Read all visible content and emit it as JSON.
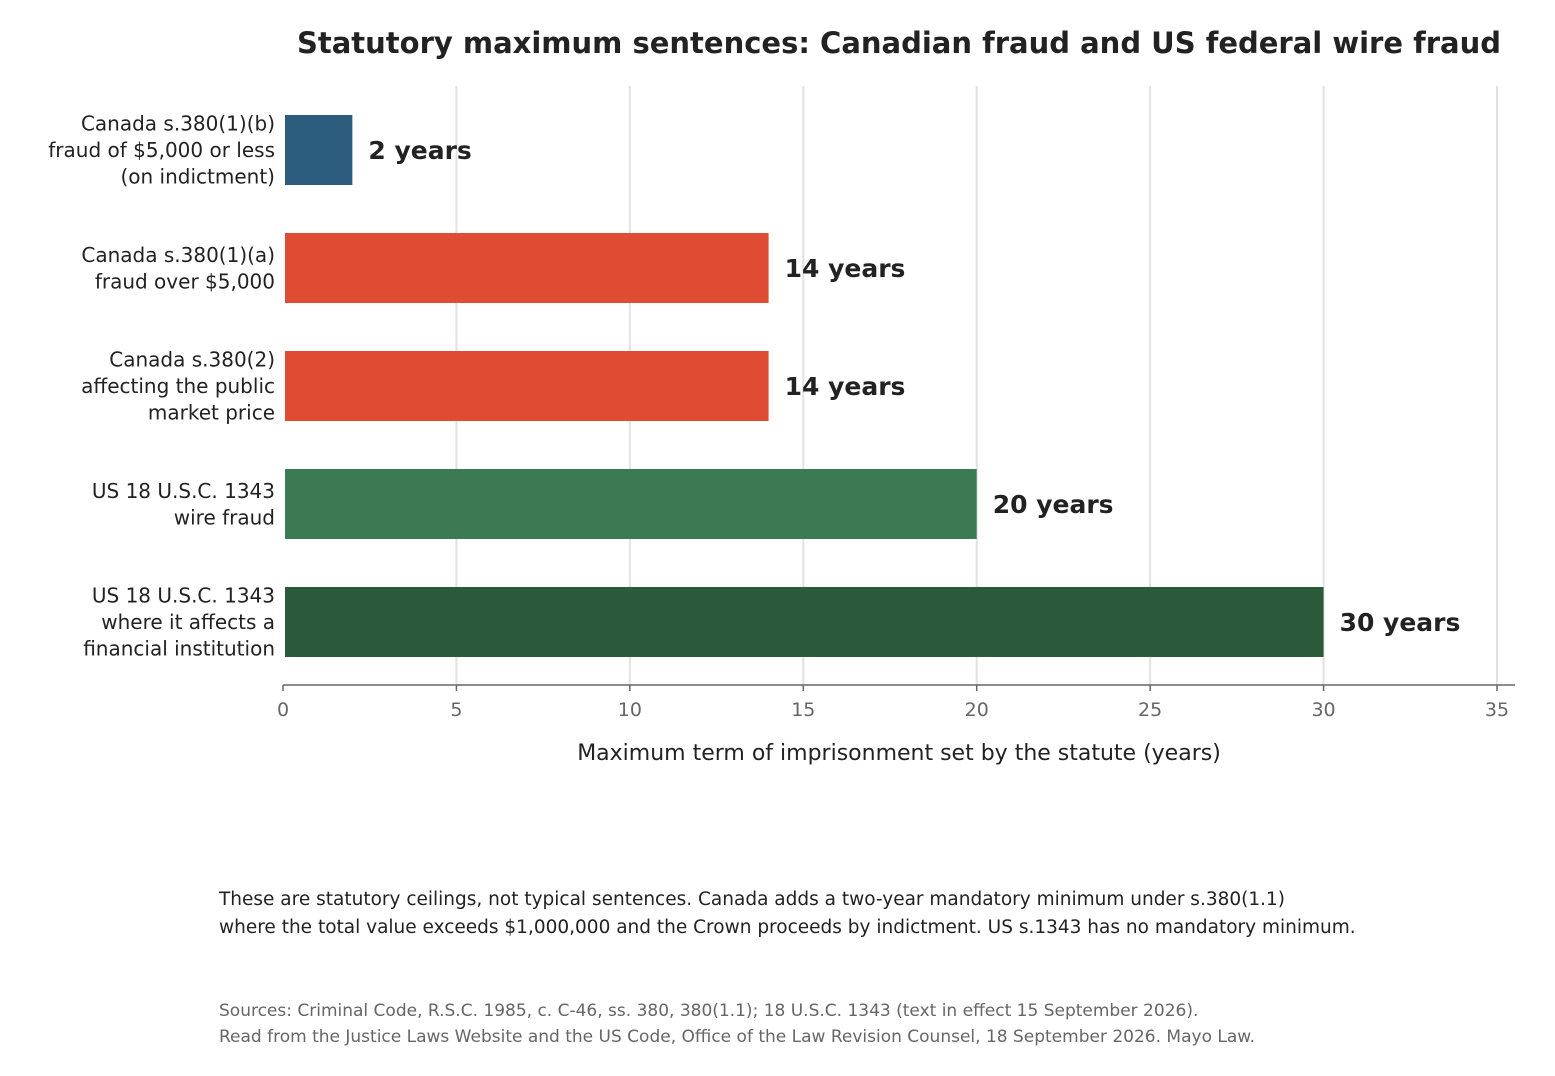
{
  "chart_data": {
    "type": "bar",
    "orientation": "horizontal",
    "title": "Statutory maximum sentences: Canadian fraud and US federal wire fraud",
    "xlabel": "Maximum term of imprisonment set by the statute (years)",
    "ylabel": "",
    "xlim": [
      0,
      35
    ],
    "xticks": [
      0,
      5,
      10,
      15,
      20,
      25,
      30,
      35
    ],
    "grid": "vertical",
    "bars": [
      {
        "label_lines": [
          "Canada s.380(1)(b)",
          "fraud of $5,000 or less",
          "(on indictment)"
        ],
        "value": 2,
        "value_label": "2 years",
        "color": "#2d5d7e"
      },
      {
        "label_lines": [
          "Canada s.380(1)(a)",
          "fraud over $5,000"
        ],
        "value": 14,
        "value_label": "14 years",
        "color": "#e04b33"
      },
      {
        "label_lines": [
          "Canada s.380(2)",
          "affecting the public",
          "market price"
        ],
        "value": 14,
        "value_label": "14 years",
        "color": "#e04b33"
      },
      {
        "label_lines": [
          "US 18 U.S.C. 1343",
          "wire fraud"
        ],
        "value": 20,
        "value_label": "20 years",
        "color": "#3c7a53"
      },
      {
        "label_lines": [
          "US 18 U.S.C. 1343",
          "where it affects a",
          "financial institution"
        ],
        "value": 30,
        "value_label": "30 years",
        "color": "#2b5a3a"
      }
    ]
  },
  "note_lines": [
    "These are statutory ceilings, not typical sentences. Canada adds a two-year mandatory minimum under s.380(1.1)",
    "where the total value exceeds $1,000,000 and the Crown proceeds by indictment. US s.1343 has no mandatory minimum."
  ],
  "source_lines": [
    "Sources: Criminal Code, R.S.C. 1985, c. C-46, ss. 380, 380(1.1); 18 U.S.C. 1343 (text in effect 15 September 2026).",
    "Read from the Justice Laws Website and the US Code, Office of the Law Revision Counsel, 18 September 2026. Mayo Law."
  ]
}
